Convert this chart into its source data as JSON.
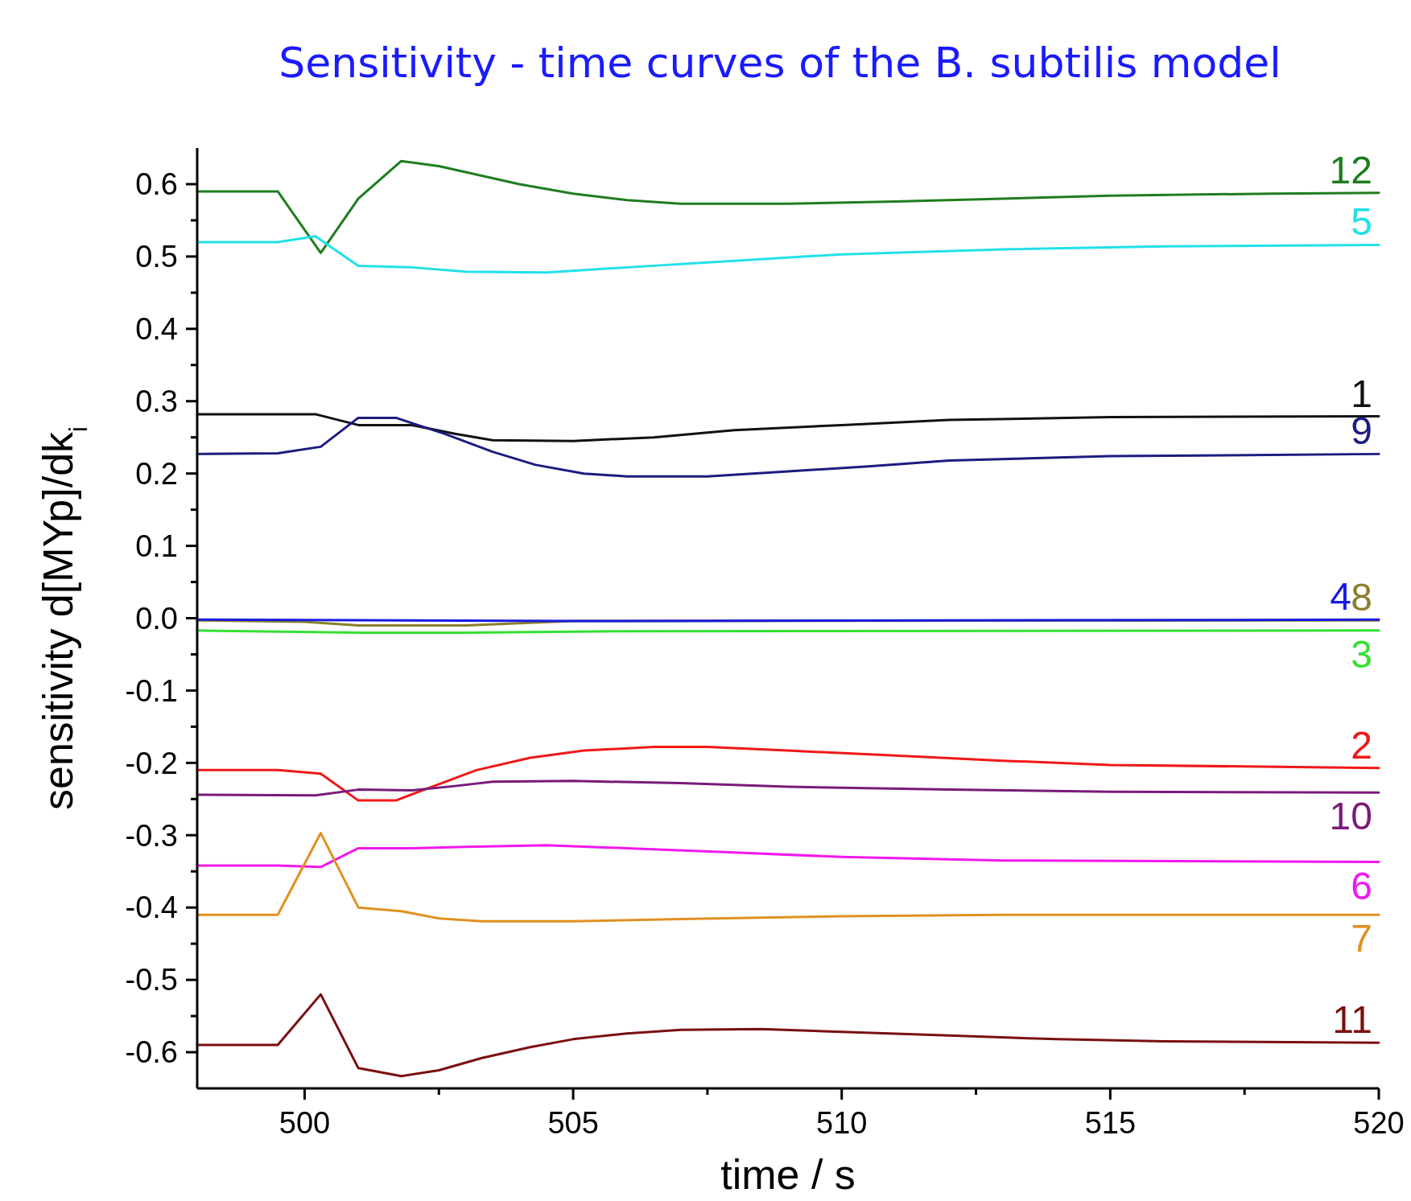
{
  "chart_data": {
    "type": "line",
    "title": "Sensitivity - time curves of the B. subtilis model",
    "xlabel": "time / s",
    "ylabel": "sensitivity d[MYp]/dk$_{i}$",
    "xlim": [
      498,
      520
    ],
    "xticks": [
      500,
      {
        "value": 502.5,
        "label": null
      },
      505,
      {
        "value": 507.5,
        "label": null
      },
      510,
      {
        "value": 512.5,
        "label": null
      },
      515,
      {
        "value": 517.5,
        "label": null
      },
      520
    ],
    "ylim": [
      -0.65,
      0.65
    ],
    "yticks": [
      -0.6,
      {
        "value": -0.55,
        "label": null
      },
      -0.5,
      {
        "value": -0.45,
        "label": null
      },
      -0.4,
      {
        "value": -0.35,
        "label": null
      },
      -0.3,
      {
        "value": -0.25,
        "label": null
      },
      -0.2,
      {
        "value": -0.15,
        "label": null
      },
      -0.1,
      {
        "value": -0.05,
        "label": null
      },
      {
        "value": 0,
        "label": "0.0"
      },
      {
        "value": 0.05,
        "label": null
      },
      0.1,
      {
        "value": 0.15,
        "label": null
      },
      0.2,
      {
        "value": 0.25,
        "label": null
      },
      0.3,
      {
        "value": 0.35,
        "label": null
      },
      0.4,
      {
        "value": 0.45,
        "label": null
      },
      0.5,
      {
        "value": 0.55,
        "label": null
      },
      0.6
    ],
    "grid": false,
    "marker": "none",
    "line_style": "solid",
    "series": [
      {
        "name": "12",
        "color": "#1e7d1e",
        "x": [
          498,
          499.5,
          500.3,
          501,
          501.8,
          502.5,
          504,
          505,
          506,
          507,
          509,
          511,
          513,
          515,
          518,
          520
        ],
        "values": [
          0.59,
          0.59,
          0.505,
          0.58,
          0.632,
          0.625,
          0.6,
          0.587,
          0.578,
          0.573,
          0.573,
          0.576,
          0.58,
          0.584,
          0.587,
          0.588
        ]
      },
      {
        "name": "5",
        "color": "#22e0e8",
        "x": [
          498,
          499.5,
          500.2,
          501,
          502,
          503,
          504.5,
          506,
          508,
          510,
          513,
          516,
          520
        ],
        "values": [
          0.52,
          0.52,
          0.528,
          0.487,
          0.485,
          0.479,
          0.478,
          0.485,
          0.494,
          0.503,
          0.51,
          0.514,
          0.516
        ]
      },
      {
        "name": "1",
        "color": "#111111",
        "x": [
          498,
          500.2,
          501,
          502,
          502.8,
          503.5,
          505,
          506.5,
          508,
          510,
          512,
          515,
          520
        ],
        "values": [
          0.282,
          0.282,
          0.267,
          0.267,
          0.255,
          0.246,
          0.245,
          0.25,
          0.26,
          0.267,
          0.274,
          0.278,
          0.279
        ]
      },
      {
        "name": "9",
        "color": "#1c1c80",
        "x": [
          498,
          499.5,
          500.3,
          501,
          501.7,
          502.6,
          503.5,
          504.3,
          505.2,
          506,
          507.5,
          509,
          510.5,
          512,
          515,
          520
        ],
        "values": [
          0.227,
          0.228,
          0.237,
          0.277,
          0.277,
          0.255,
          0.23,
          0.212,
          0.2,
          0.196,
          0.196,
          0.203,
          0.21,
          0.218,
          0.224,
          0.227
        ]
      },
      {
        "name": "8",
        "color": "#8a7f2a",
        "x": [
          498,
          500,
          501,
          503,
          505,
          520
        ],
        "values": [
          -0.003,
          -0.005,
          -0.01,
          -0.01,
          -0.004,
          -0.003
        ]
      },
      {
        "name": "4",
        "color": "#1a1ae0",
        "x": [
          498,
          505,
          520
        ],
        "values": [
          -0.002,
          -0.004,
          -0.002
        ]
      },
      {
        "name": "3",
        "color": "#33e033",
        "x": [
          498,
          501,
          503,
          506,
          520
        ],
        "values": [
          -0.017,
          -0.02,
          -0.02,
          -0.018,
          -0.017
        ]
      },
      {
        "name": "2",
        "color": "#f01818",
        "x": [
          498,
          499.5,
          500.3,
          501,
          501.7,
          502.3,
          503.2,
          504.2,
          505.2,
          506.5,
          507.5,
          509,
          511,
          513,
          515,
          520
        ],
        "values": [
          -0.21,
          -0.21,
          -0.215,
          -0.252,
          -0.252,
          -0.235,
          -0.21,
          -0.193,
          -0.183,
          -0.178,
          -0.178,
          -0.183,
          -0.19,
          -0.197,
          -0.203,
          -0.207
        ]
      },
      {
        "name": "10",
        "color": "#7a1a7a",
        "x": [
          498,
          500.2,
          501,
          502,
          502.8,
          503.5,
          505,
          507,
          509,
          512,
          515,
          520
        ],
        "values": [
          -0.244,
          -0.245,
          -0.237,
          -0.238,
          -0.232,
          -0.226,
          -0.225,
          -0.228,
          -0.233,
          -0.237,
          -0.24,
          -0.241
        ]
      },
      {
        "name": "6",
        "color": "#f018f0",
        "x": [
          498,
          499.5,
          500.3,
          501,
          502,
          503,
          504.5,
          506,
          508,
          510,
          513,
          520
        ],
        "values": [
          -0.342,
          -0.342,
          -0.344,
          -0.318,
          -0.318,
          -0.316,
          -0.314,
          -0.318,
          -0.324,
          -0.33,
          -0.335,
          -0.337
        ]
      },
      {
        "name": "7",
        "color": "#e09020",
        "x": [
          498,
          499.5,
          500.3,
          501,
          501.8,
          502.5,
          503.3,
          505,
          507,
          510,
          513,
          520
        ],
        "values": [
          -0.41,
          -0.41,
          -0.297,
          -0.4,
          -0.405,
          -0.415,
          -0.419,
          -0.419,
          -0.416,
          -0.412,
          -0.41,
          -0.41
        ]
      },
      {
        "name": "11",
        "color": "#7a1010",
        "x": [
          498,
          499.5,
          500.3,
          501,
          501.8,
          502.5,
          503.3,
          504.2,
          505,
          506,
          507,
          508.5,
          510,
          512,
          514,
          516,
          520
        ],
        "values": [
          -0.59,
          -0.59,
          -0.52,
          -0.622,
          -0.633,
          -0.625,
          -0.608,
          -0.593,
          -0.582,
          -0.574,
          -0.569,
          -0.568,
          -0.572,
          -0.577,
          -0.582,
          -0.585,
          -0.587
        ]
      }
    ]
  }
}
